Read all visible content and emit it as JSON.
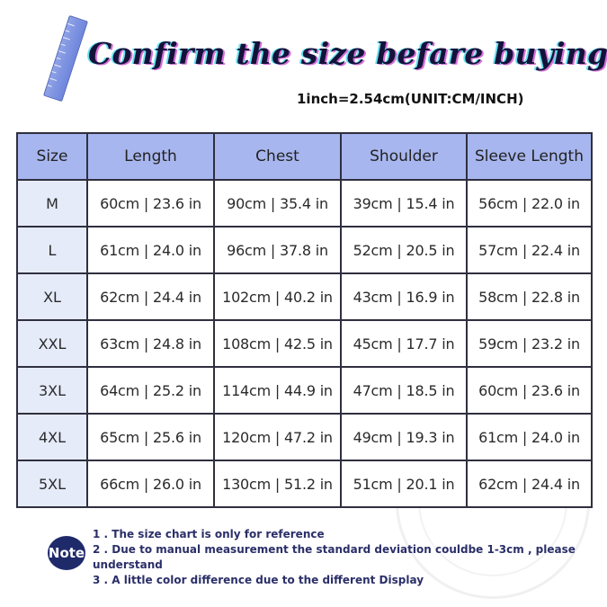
{
  "header": {
    "title": "Confirm the size befare buying",
    "unit_note": "1inch=2.54cm(UNIT:CM/INCH)"
  },
  "size_table": {
    "columns": [
      "Size",
      "Length",
      "Chest",
      "Shoulder",
      "Sleeve Length"
    ],
    "rows": [
      {
        "size": "M",
        "length": "60cm | 23.6 in",
        "chest": "90cm | 35.4 in",
        "shoulder": "39cm | 15.4 in",
        "sleeve": "56cm | 22.0 in"
      },
      {
        "size": "L",
        "length": "61cm | 24.0 in",
        "chest": "96cm | 37.8 in",
        "shoulder": "52cm | 20.5 in",
        "sleeve": "57cm | 22.4 in"
      },
      {
        "size": "XL",
        "length": "62cm | 24.4 in",
        "chest": "102cm | 40.2 in",
        "shoulder": "43cm | 16.9 in",
        "sleeve": "58cm | 22.8 in"
      },
      {
        "size": "XXL",
        "length": "63cm | 24.8 in",
        "chest": "108cm | 42.5 in",
        "shoulder": "45cm | 17.7 in",
        "sleeve": "59cm | 23.2 in"
      },
      {
        "size": "3XL",
        "length": "64cm | 25.2 in",
        "chest": "114cm | 44.9 in",
        "shoulder": "47cm | 18.5 in",
        "sleeve": "60cm | 23.6 in"
      },
      {
        "size": "4XL",
        "length": "65cm | 25.6 in",
        "chest": "120cm | 47.2 in",
        "shoulder": "49cm | 19.3 in",
        "sleeve": "61cm | 24.0 in"
      },
      {
        "size": "5XL",
        "length": "66cm | 26.0 in",
        "chest": "130cm | 51.2 in",
        "shoulder": "51cm | 20.1 in",
        "sleeve": "62cm | 24.4 in"
      }
    ]
  },
  "note": {
    "badge": "Note",
    "lines": [
      "1 . The size chart is only for reference",
      "2 . Due to manual measurement the standard deviation couldbe 1-3cm , please understand",
      "3 . A little color difference due to the different Display"
    ]
  },
  "colors": {
    "header_fill": "#a7b6ee",
    "size_column_fill": "#e6ebfa",
    "note_badge": "#1f2a6b",
    "note_text": "#2b2f68"
  },
  "icons": {
    "ruler": "ruler-icon",
    "watermark": "watermark-seal"
  }
}
